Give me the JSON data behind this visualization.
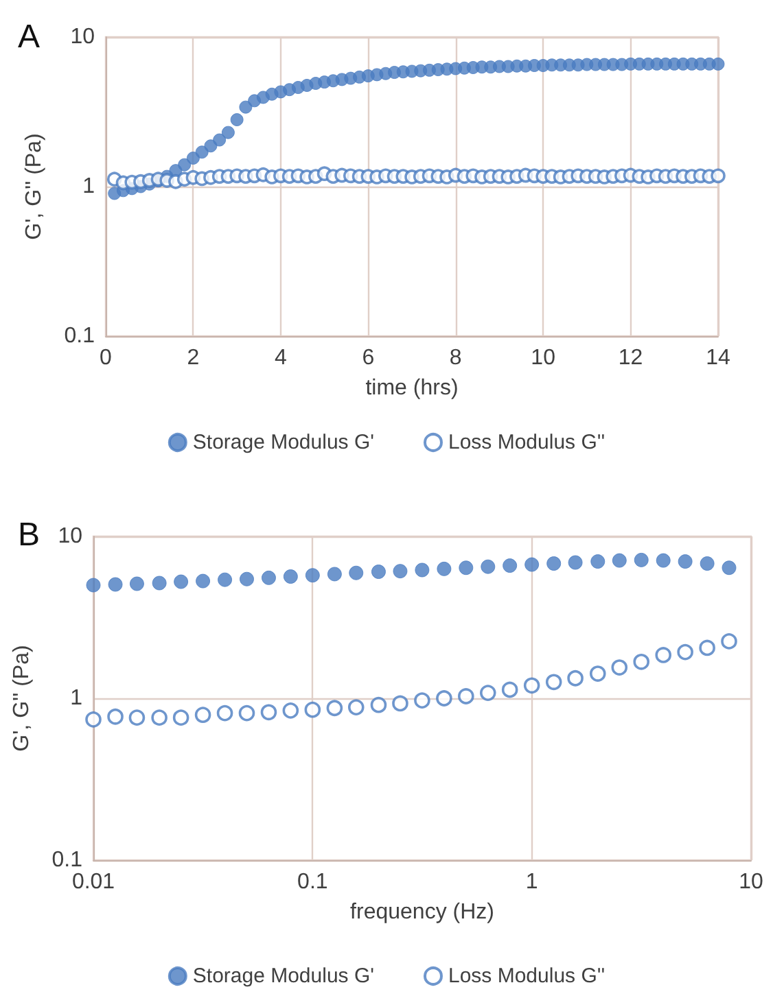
{
  "chart_data": [
    {
      "type": "scatter",
      "title": "A",
      "xlabel": "time (hrs)",
      "ylabel": "G', G'' (Pa)",
      "log": "y",
      "grid": true,
      "legend": "bottom",
      "marker": "circle",
      "xlim": [
        0,
        14
      ],
      "xticks": [
        0,
        2,
        4,
        6,
        8,
        10,
        12,
        14
      ],
      "ylim": [
        0.1,
        10
      ],
      "yticks": [
        0.1,
        1,
        10
      ],
      "x": [
        0.2,
        0.4,
        0.6,
        0.8,
        1.0,
        1.2,
        1.4,
        1.6,
        1.8,
        2.0,
        2.2,
        2.4,
        2.6,
        2.8,
        3.0,
        3.2,
        3.4,
        3.6,
        3.8,
        4.0,
        4.2,
        4.4,
        4.6,
        4.8,
        5.0,
        5.2,
        5.4,
        5.6,
        5.8,
        6.0,
        6.2,
        6.4,
        6.6,
        6.8,
        7.0,
        7.2,
        7.4,
        7.6,
        7.8,
        8.0,
        8.2,
        8.4,
        8.6,
        8.8,
        9.0,
        9.2,
        9.4,
        9.6,
        9.8,
        10.0,
        10.2,
        10.4,
        10.6,
        10.8,
        11.0,
        11.2,
        11.4,
        11.6,
        11.8,
        12.0,
        12.2,
        12.4,
        12.6,
        12.8,
        13.0,
        13.2,
        13.4,
        13.6,
        13.8,
        14.0
      ],
      "series": [
        {
          "name": "Storage Modulus G'",
          "color": "#4a7cc0",
          "values": [
            0.9,
            0.94,
            0.97,
            1.0,
            1.04,
            1.09,
            1.17,
            1.28,
            1.4,
            1.55,
            1.7,
            1.87,
            2.05,
            2.3,
            2.8,
            3.4,
            3.75,
            3.95,
            4.15,
            4.3,
            4.45,
            4.6,
            4.75,
            4.9,
            5.0,
            5.1,
            5.2,
            5.3,
            5.4,
            5.5,
            5.6,
            5.7,
            5.8,
            5.85,
            5.9,
            5.95,
            6.0,
            6.05,
            6.1,
            6.15,
            6.2,
            6.25,
            6.3,
            6.3,
            6.35,
            6.35,
            6.4,
            6.4,
            6.45,
            6.45,
            6.5,
            6.5,
            6.5,
            6.5,
            6.55,
            6.55,
            6.55,
            6.55,
            6.55,
            6.6,
            6.6,
            6.6,
            6.6,
            6.6,
            6.6,
            6.6,
            6.6,
            6.6,
            6.6,
            6.6
          ]
        },
        {
          "name": "Loss Modulus G''",
          "color": "#4a7cc0",
          "values": [
            1.12,
            1.06,
            1.07,
            1.08,
            1.1,
            1.12,
            1.1,
            1.08,
            1.12,
            1.15,
            1.13,
            1.15,
            1.17,
            1.17,
            1.18,
            1.17,
            1.18,
            1.2,
            1.16,
            1.18,
            1.17,
            1.18,
            1.16,
            1.17,
            1.22,
            1.17,
            1.19,
            1.18,
            1.17,
            1.17,
            1.16,
            1.18,
            1.17,
            1.17,
            1.16,
            1.17,
            1.18,
            1.17,
            1.16,
            1.19,
            1.17,
            1.18,
            1.16,
            1.17,
            1.17,
            1.16,
            1.17,
            1.19,
            1.18,
            1.17,
            1.17,
            1.16,
            1.17,
            1.18,
            1.17,
            1.17,
            1.16,
            1.17,
            1.18,
            1.19,
            1.17,
            1.16,
            1.18,
            1.17,
            1.18,
            1.17,
            1.17,
            1.18,
            1.17,
            1.18
          ]
        }
      ]
    },
    {
      "type": "scatter",
      "title": "B",
      "xlabel": "frequency (Hz)",
      "ylabel": "G', G'' (Pa)",
      "log": "xy",
      "grid": true,
      "legend": "bottom",
      "marker": "circle",
      "xlim": [
        0.01,
        10
      ],
      "xticks": [
        0.01,
        0.1,
        1,
        10
      ],
      "ylim": [
        0.1,
        10
      ],
      "yticks": [
        0.1,
        1,
        10
      ],
      "x": [
        0.01,
        0.0126,
        0.0158,
        0.02,
        0.0251,
        0.0316,
        0.0398,
        0.0501,
        0.0631,
        0.0794,
        0.1,
        0.126,
        0.158,
        0.2,
        0.251,
        0.316,
        0.398,
        0.501,
        0.631,
        0.794,
        1,
        1.26,
        1.58,
        2,
        2.51,
        3.16,
        3.98,
        5.01,
        6.31,
        7.94
      ],
      "series": [
        {
          "name": "Storage Modulus G'",
          "color": "#4a7cc0",
          "values": [
            5.0,
            5.05,
            5.1,
            5.15,
            5.25,
            5.3,
            5.4,
            5.45,
            5.55,
            5.65,
            5.75,
            5.85,
            5.95,
            6.05,
            6.1,
            6.2,
            6.3,
            6.4,
            6.5,
            6.6,
            6.7,
            6.8,
            6.9,
            7.0,
            7.1,
            7.15,
            7.1,
            7.0,
            6.8,
            6.4
          ]
        },
        {
          "name": "Loss Modulus G''",
          "color": "#4a7cc0",
          "values": [
            0.74,
            0.77,
            0.76,
            0.76,
            0.76,
            0.79,
            0.81,
            0.81,
            0.82,
            0.84,
            0.85,
            0.87,
            0.88,
            0.91,
            0.93,
            0.97,
            1.0,
            1.03,
            1.08,
            1.13,
            1.2,
            1.26,
            1.33,
            1.42,
            1.55,
            1.68,
            1.85,
            1.93,
            2.05,
            2.25
          ]
        }
      ]
    }
  ]
}
